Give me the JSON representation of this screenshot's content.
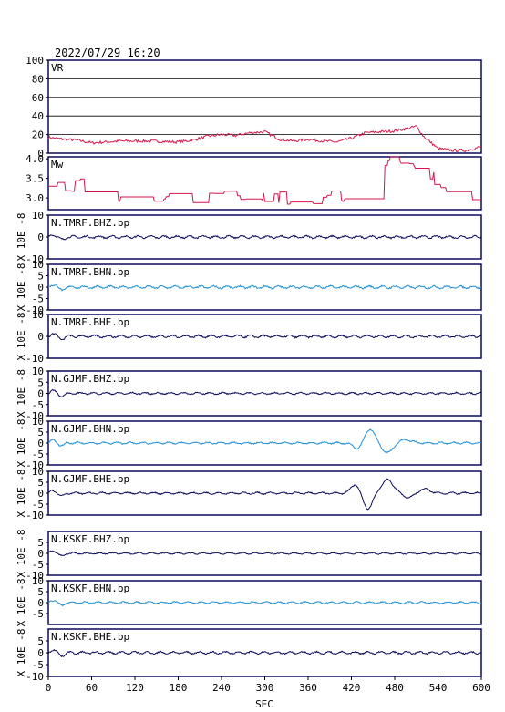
{
  "timestamp": "2022/07/29 16:20",
  "xlabel": "SEC",
  "x_ticks": [
    "0",
    "60",
    "120",
    "180",
    "240",
    "300",
    "360",
    "420",
    "480",
    "540",
    "600"
  ],
  "y_unit_label": "X 10E -8",
  "colors": {
    "vr": "#d4174a",
    "mw": "#d4174a",
    "dark": "#0a0a5a",
    "light": "#1e8fd6",
    "frame": "#0a0a5a"
  },
  "chart_data": [
    {
      "type": "line",
      "name": "VR",
      "label": "VR",
      "ylim": [
        0,
        100
      ],
      "yticks": [
        "100",
        "80",
        "60",
        "40",
        "20",
        "0"
      ],
      "grid": true,
      "keypoints": [
        [
          0,
          17
        ],
        [
          20,
          15
        ],
        [
          40,
          14
        ],
        [
          60,
          11
        ],
        [
          100,
          13
        ],
        [
          140,
          13
        ],
        [
          180,
          12
        ],
        [
          200,
          14
        ],
        [
          220,
          18
        ],
        [
          240,
          20
        ],
        [
          260,
          19
        ],
        [
          280,
          22
        ],
        [
          300,
          23
        ],
        [
          320,
          15
        ],
        [
          340,
          13
        ],
        [
          360,
          15
        ],
        [
          380,
          13
        ],
        [
          400,
          12
        ],
        [
          420,
          16
        ],
        [
          440,
          22
        ],
        [
          460,
          23
        ],
        [
          480,
          24
        ],
        [
          500,
          27
        ],
        [
          510,
          29
        ],
        [
          520,
          18
        ],
        [
          540,
          5
        ],
        [
          560,
          3
        ],
        [
          580,
          3
        ],
        [
          600,
          7
        ]
      ]
    },
    {
      "type": "line",
      "name": "Mw",
      "label": "Mw",
      "ylim": [
        2.7,
        4.05
      ],
      "yticks": [
        "4.0",
        "3.5",
        "3.0"
      ],
      "grid": false,
      "keypoints": [
        [
          0,
          3.3
        ],
        [
          40,
          3.35
        ],
        [
          80,
          3.05
        ],
        [
          120,
          2.95
        ],
        [
          180,
          3.0
        ],
        [
          240,
          3.05
        ],
        [
          300,
          3.0
        ],
        [
          360,
          2.95
        ],
        [
          420,
          3.1
        ],
        [
          440,
          3.5
        ],
        [
          460,
          3.85
        ],
        [
          480,
          4.0
        ],
        [
          500,
          3.9
        ],
        [
          520,
          3.75
        ],
        [
          540,
          3.4
        ],
        [
          560,
          3.2
        ],
        [
          580,
          3.05
        ],
        [
          600,
          2.95
        ]
      ]
    },
    {
      "type": "line",
      "name": "N.TMRF.BHZ.bp",
      "label": "N.TMRF.BHZ.bp",
      "ylim": [
        -10,
        10
      ],
      "yticks": [
        "10",
        "0",
        "-10"
      ],
      "color_key": "dark",
      "noise": 0.8,
      "events": []
    },
    {
      "type": "line",
      "name": "N.TMRF.BHN.bp",
      "label": "N.TMRF.BHN.bp",
      "ylim": [
        -10,
        10
      ],
      "yticks": [
        "10",
        "5",
        "0",
        "-5",
        "-10"
      ],
      "color_key": "light",
      "noise": 0.8,
      "events": []
    },
    {
      "type": "line",
      "name": "N.TMRF.BHE.bp",
      "label": "N.TMRF.BHE.bp",
      "ylim": [
        -10,
        10
      ],
      "yticks": [
        "10",
        "0",
        "-10"
      ],
      "color_key": "dark",
      "noise": 0.8,
      "events": []
    },
    {
      "type": "line",
      "name": "N.GJMF.BHZ.bp",
      "label": "N.GJMF.BHZ.bp",
      "ylim": [
        -10,
        10
      ],
      "yticks": [
        "10",
        "5",
        "0",
        "-5",
        "-10"
      ],
      "color_key": "dark",
      "noise": 0.6,
      "events": []
    },
    {
      "type": "line",
      "name": "N.GJMF.BHN.bp",
      "label": "N.GJMF.BHN.bp",
      "ylim": [
        -10,
        10
      ],
      "yticks": [
        "10",
        "5",
        "0",
        "-5",
        "-10"
      ],
      "color_key": "light",
      "noise": 0.6,
      "events": [
        [
          428,
          -2.5,
          8
        ],
        [
          446,
          6.5,
          9
        ],
        [
          470,
          -4.5,
          10
        ],
        [
          495,
          1.5,
          12
        ]
      ]
    },
    {
      "type": "line",
      "name": "N.GJMF.BHE.bp",
      "label": "N.GJMF.BHE.bp",
      "ylim": [
        -10,
        10
      ],
      "yticks": [
        "10",
        "5",
        "0",
        "-5",
        "-10"
      ],
      "color_key": "dark",
      "noise": 0.6,
      "events": [
        [
          425,
          4,
          8
        ],
        [
          443,
          -7,
          9
        ],
        [
          470,
          6,
          12
        ],
        [
          500,
          -2,
          12
        ],
        [
          520,
          2,
          12
        ]
      ]
    },
    {
      "type": "line",
      "name": "N.KSKF.BHZ.bp",
      "label": "N.KSKF.BHZ.bp",
      "ylim": [
        -10,
        10
      ],
      "yticks": [
        "5",
        "0",
        "-5",
        "-10"
      ],
      "color_key": "dark",
      "noise": 0.5,
      "events": []
    },
    {
      "type": "line",
      "name": "N.KSKF.BHN.bp",
      "label": "N.KSKF.BHN.bp",
      "ylim": [
        -10,
        10
      ],
      "yticks": [
        "10",
        "5",
        "0",
        "-5"
      ],
      "color_key": "light",
      "noise": 0.6,
      "events": []
    },
    {
      "type": "line",
      "name": "N.KSKF.BHE.bp",
      "label": "N.KSKF.BHE.bp",
      "ylim": [
        -10,
        10
      ],
      "yticks": [
        "5",
        "0",
        "-5",
        "-10"
      ],
      "color_key": "dark",
      "noise": 0.7,
      "events": []
    }
  ]
}
